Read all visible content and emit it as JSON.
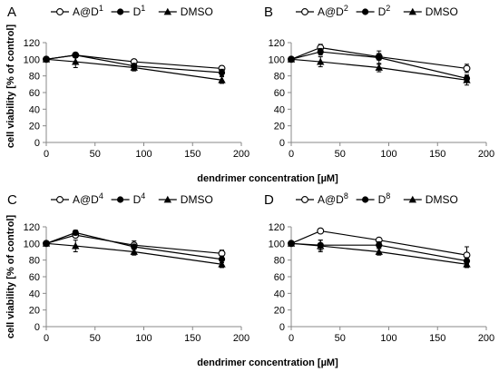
{
  "figure": {
    "xlabel": "dendrimer concentration [µM]",
    "ylabel": "cell viability [% of control]"
  },
  "chart_data": [
    {
      "type": "line",
      "panel": "A",
      "xlim": [
        0,
        200
      ],
      "ylim": [
        0,
        120
      ],
      "xticks": [
        "0",
        "50",
        "100",
        "150",
        "200"
      ],
      "yticks": [
        "0",
        "20",
        "40",
        "60",
        "80",
        "100",
        "120"
      ],
      "legend_placement": "top",
      "series": [
        {
          "name": "A@D",
          "sup": "1",
          "marker": "open-circle",
          "x": [
            0,
            30,
            90,
            180
          ],
          "y": [
            100,
            105,
            97,
            89
          ],
          "err": [
            0,
            3,
            2,
            3
          ]
        },
        {
          "name": "D",
          "sup": "1",
          "marker": "filled-circle",
          "x": [
            0,
            30,
            90,
            180
          ],
          "y": [
            100,
            105,
            92,
            84
          ],
          "err": [
            0,
            3,
            3,
            4
          ]
        },
        {
          "name": "DMSO",
          "sup": "",
          "marker": "triangle",
          "x": [
            0,
            30,
            90,
            180
          ],
          "y": [
            100,
            97,
            90,
            75
          ],
          "err": [
            0,
            7,
            4,
            4
          ]
        }
      ]
    },
    {
      "type": "line",
      "panel": "B",
      "xlim": [
        0,
        200
      ],
      "ylim": [
        0,
        120
      ],
      "xticks": [
        "0",
        "50",
        "100",
        "150",
        "200"
      ],
      "yticks": [
        "0",
        "20",
        "40",
        "60",
        "80",
        "100",
        "120"
      ],
      "legend_placement": "top",
      "series": [
        {
          "name": "A@D",
          "sup": "2",
          "marker": "open-circle",
          "x": [
            0,
            30,
            90,
            180
          ],
          "y": [
            100,
            114,
            103,
            89
          ],
          "err": [
            0,
            4,
            4,
            5
          ]
        },
        {
          "name": "D",
          "sup": "2",
          "marker": "filled-circle",
          "x": [
            0,
            30,
            90,
            180
          ],
          "y": [
            100,
            109,
            102,
            77
          ],
          "err": [
            0,
            4,
            8,
            4
          ]
        },
        {
          "name": "DMSO",
          "sup": "",
          "marker": "triangle",
          "x": [
            0,
            30,
            90,
            180
          ],
          "y": [
            100,
            97,
            90,
            75
          ],
          "err": [
            0,
            6,
            5,
            6
          ]
        }
      ]
    },
    {
      "type": "line",
      "panel": "C",
      "xlim": [
        0,
        200
      ],
      "ylim": [
        0,
        120
      ],
      "xticks": [
        "0",
        "50",
        "100",
        "150",
        "200"
      ],
      "yticks": [
        "0",
        "20",
        "40",
        "60",
        "80",
        "100",
        "120"
      ],
      "legend_placement": "top",
      "series": [
        {
          "name": "A@D",
          "sup": "4",
          "marker": "open-circle",
          "x": [
            0,
            30,
            90,
            180
          ],
          "y": [
            100,
            110,
            98,
            88
          ],
          "err": [
            0,
            3,
            5,
            4
          ]
        },
        {
          "name": "D",
          "sup": "4",
          "marker": "filled-circle",
          "x": [
            0,
            30,
            90,
            180
          ],
          "y": [
            100,
            113,
            96,
            81
          ],
          "err": [
            0,
            3,
            3,
            4
          ]
        },
        {
          "name": "DMSO",
          "sup": "",
          "marker": "triangle",
          "x": [
            0,
            30,
            90,
            180
          ],
          "y": [
            100,
            97,
            90,
            75
          ],
          "err": [
            0,
            7,
            4,
            4
          ]
        }
      ]
    },
    {
      "type": "line",
      "panel": "D",
      "xlim": [
        0,
        200
      ],
      "ylim": [
        0,
        120
      ],
      "xticks": [
        "0",
        "50",
        "100",
        "150",
        "200"
      ],
      "yticks": [
        "0",
        "20",
        "40",
        "60",
        "80",
        "100",
        "120"
      ],
      "legend_placement": "top",
      "series": [
        {
          "name": "A@D",
          "sup": "8",
          "marker": "open-circle",
          "x": [
            0,
            30,
            90,
            180
          ],
          "y": [
            100,
            115,
            104,
            86
          ],
          "err": [
            0,
            2,
            2,
            10
          ]
        },
        {
          "name": "D",
          "sup": "8",
          "marker": "filled-circle",
          "x": [
            0,
            30,
            90,
            180
          ],
          "y": [
            100,
            98,
            98,
            79
          ],
          "err": [
            0,
            6,
            4,
            4
          ]
        },
        {
          "name": "DMSO",
          "sup": "",
          "marker": "triangle",
          "x": [
            0,
            30,
            90,
            180
          ],
          "y": [
            100,
            97,
            90,
            75
          ],
          "err": [
            0,
            7,
            4,
            4
          ]
        }
      ]
    }
  ]
}
